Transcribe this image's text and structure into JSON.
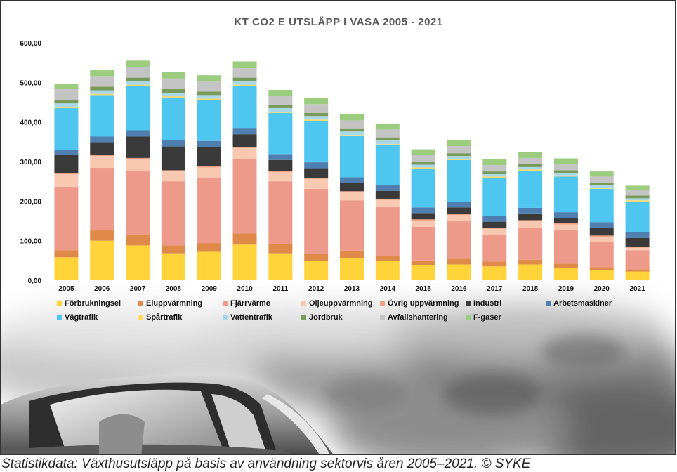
{
  "caption": "Statistikdata: Växthusutsläpp på basis av användning sektorvis åren 2005–2021. © SYKE",
  "chart_data": {
    "type": "bar",
    "stacked": true,
    "title": "KT CO2 E UTSLÄPP I VASA 2005 - 2021",
    "xlabel": "",
    "ylabel": "",
    "ylim": [
      0,
      600
    ],
    "yticks": [
      "0,00",
      "100,00",
      "200,00",
      "300,00",
      "400,00",
      "500,00",
      "600,00"
    ],
    "grid": false,
    "legend_position": "bottom",
    "categories": [
      "2005",
      "2006",
      "2007",
      "2008",
      "2009",
      "2010",
      "2011",
      "2012",
      "2013",
      "2014",
      "2015",
      "2016",
      "2017",
      "2018",
      "2019",
      "2020",
      "2021"
    ],
    "series": [
      {
        "name": "Förbrukningsel",
        "color": "#ffd43b",
        "values": [
          58,
          100,
          88,
          68,
          72,
          90,
          68,
          48,
          55,
          48,
          38,
          40,
          35,
          40,
          32,
          25,
          22
        ]
      },
      {
        "name": "Eluppvärmning",
        "color": "#e08a4a",
        "values": [
          18,
          26,
          28,
          20,
          22,
          28,
          24,
          18,
          20,
          14,
          12,
          14,
          12,
          12,
          10,
          8,
          6
        ]
      },
      {
        "name": "Fjärrvärme",
        "color": "#ee9a8a",
        "values": [
          160,
          158,
          160,
          162,
          165,
          188,
          158,
          165,
          127,
          123,
          85,
          95,
          67,
          81,
          85,
          63,
          48
        ]
      },
      {
        "name": "Oljeuppvärmning",
        "color": "#f8c8b0",
        "values": [
          32,
          30,
          30,
          25,
          26,
          28,
          23,
          25,
          20,
          18,
          16,
          16,
          16,
          16,
          14,
          14,
          6
        ]
      },
      {
        "name": "Övrig uppvärmning",
        "color": "#f0a080",
        "values": [
          3,
          3,
          3,
          3,
          3,
          3,
          3,
          3,
          3,
          3,
          3,
          3,
          3,
          3,
          3,
          3,
          3
        ]
      },
      {
        "name": "Industri",
        "color": "#3a3a3a",
        "values": [
          45,
          32,
          54,
          60,
          48,
          32,
          28,
          24,
          20,
          20,
          16,
          16,
          15,
          17,
          14,
          20,
          22
        ]
      },
      {
        "name": "Arbetsmaskiner",
        "color": "#4f7fb0",
        "values": [
          14,
          14,
          16,
          16,
          16,
          16,
          15,
          15,
          15,
          15,
          14,
          14,
          14,
          14,
          14,
          14,
          14
        ]
      },
      {
        "name": "Vägtrafik",
        "color": "#4fc6f0",
        "values": [
          105,
          105,
          112,
          108,
          104,
          106,
          104,
          105,
          104,
          100,
          98,
          106,
          97,
          94,
          90,
          84,
          78
        ]
      },
      {
        "name": "Spårtrafik",
        "color": "#ffd966",
        "values": [
          3,
          3,
          3,
          3,
          3,
          3,
          3,
          3,
          3,
          3,
          3,
          3,
          3,
          3,
          3,
          3,
          3
        ]
      },
      {
        "name": "Vattentrafik",
        "color": "#a9d8ea",
        "values": [
          9,
          9,
          9,
          9,
          9,
          9,
          9,
          9,
          9,
          9,
          7,
          7,
          6,
          6,
          6,
          6,
          5
        ]
      },
      {
        "name": "Jordbruk",
        "color": "#7a9a5a",
        "values": [
          9,
          9,
          9,
          9,
          9,
          9,
          8,
          8,
          8,
          8,
          7,
          7,
          7,
          7,
          7,
          7,
          7
        ]
      },
      {
        "name": "Avfallshantering",
        "color": "#c4c4c4",
        "values": [
          27,
          27,
          27,
          27,
          25,
          24,
          23,
          22,
          20,
          20,
          17,
          18,
          16,
          16,
          16,
          15,
          14
        ]
      },
      {
        "name": "F-gaser",
        "color": "#9ccc7e",
        "values": [
          13,
          15,
          16,
          16,
          16,
          17,
          15,
          16,
          17,
          15,
          15,
          16,
          15,
          15,
          14,
          13,
          11
        ]
      }
    ]
  }
}
